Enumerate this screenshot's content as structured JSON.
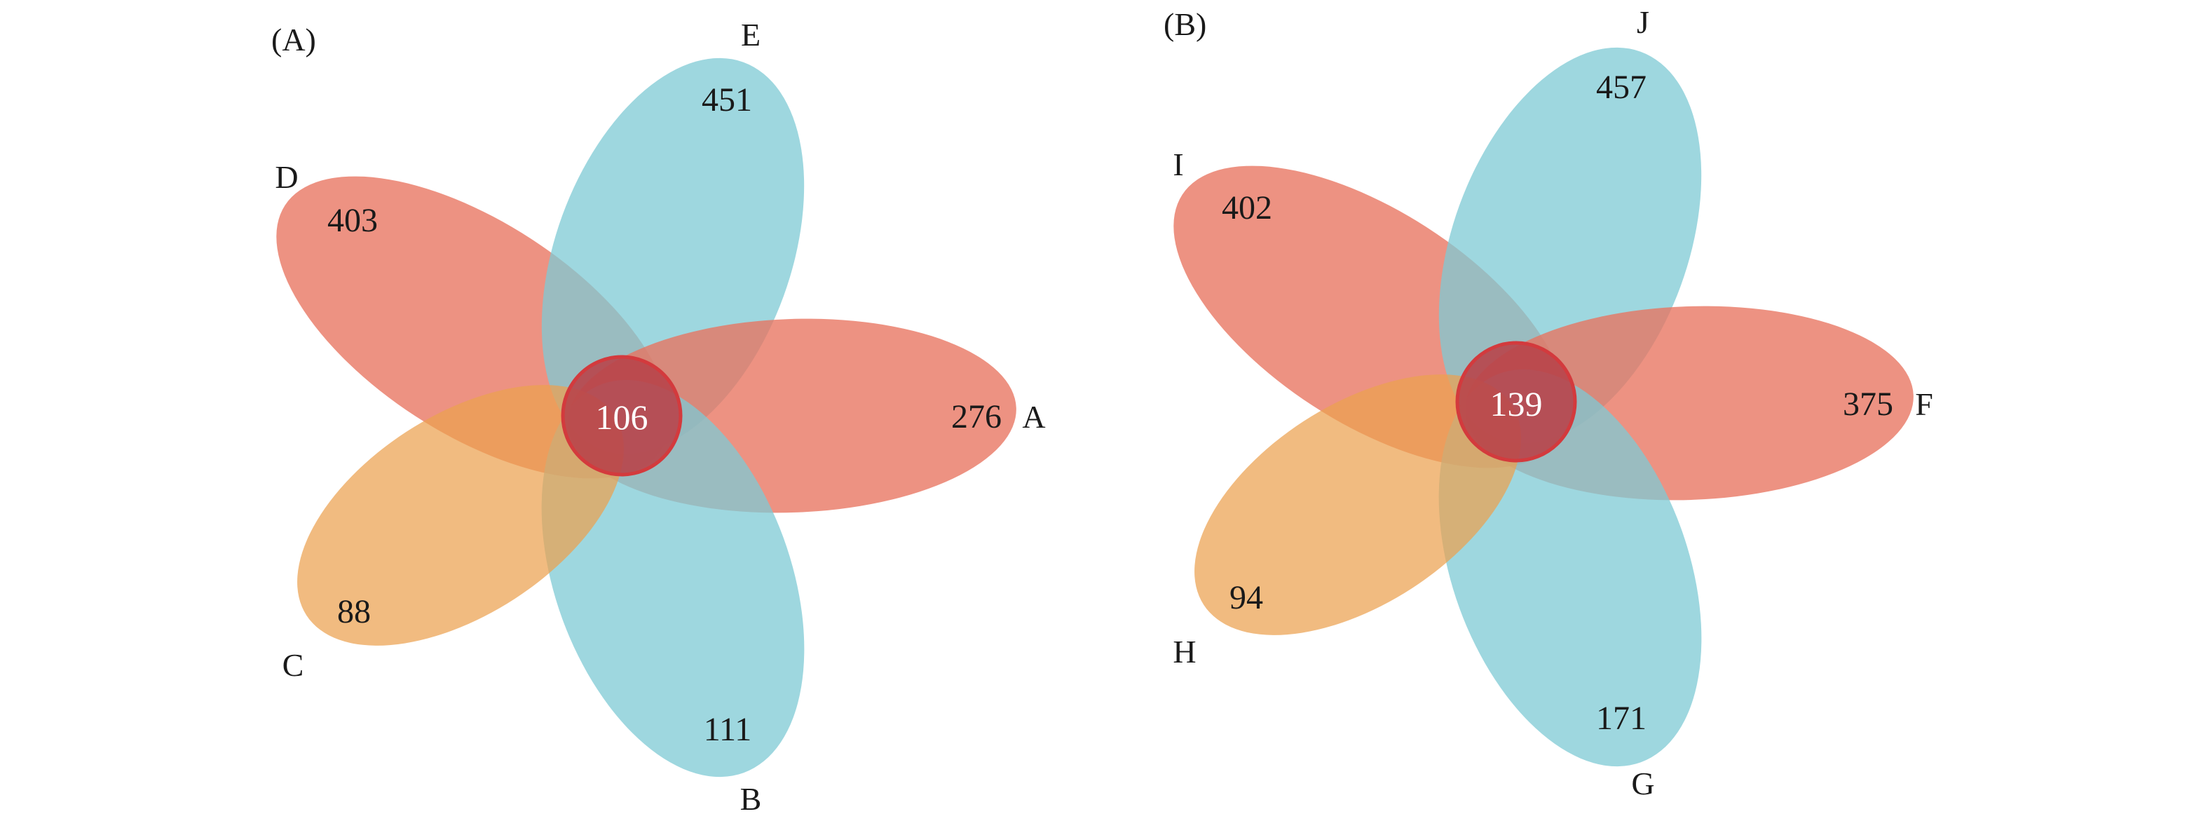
{
  "colors": {
    "red": "#e8735f",
    "teal": "#7ecad4",
    "orange": "#eba14f",
    "core_fill": "#b8444a",
    "core_stroke": "#d33a3d"
  },
  "panels": [
    {
      "panel_label": "(A)",
      "core": "106",
      "sets": [
        {
          "label": "A",
          "count": "276",
          "color": "red"
        },
        {
          "label": "B",
          "count": "111",
          "color": "teal"
        },
        {
          "label": "C",
          "count": "88",
          "color": "orange"
        },
        {
          "label": "D",
          "count": "403",
          "color": "red"
        },
        {
          "label": "E",
          "count": "451",
          "color": "teal"
        }
      ]
    },
    {
      "panel_label": "(B)",
      "core": "139",
      "sets": [
        {
          "label": "F",
          "count": "375",
          "color": "red"
        },
        {
          "label": "G",
          "count": "171",
          "color": "teal"
        },
        {
          "label": "H",
          "count": "94",
          "color": "orange"
        },
        {
          "label": "I",
          "count": "402",
          "color": "red"
        },
        {
          "label": "J",
          "count": "457",
          "color": "teal"
        }
      ]
    }
  ]
}
